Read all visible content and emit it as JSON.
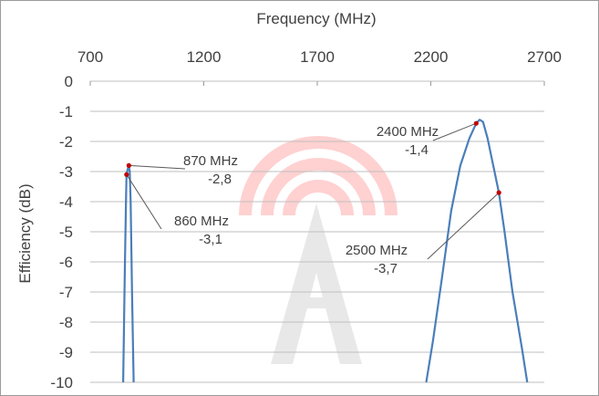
{
  "chart_data": {
    "type": "line",
    "xlabel": "Frequency (MHz)",
    "ylabel": "Efficiency (dB)",
    "xlim": [
      700,
      2700
    ],
    "ylim": [
      -10,
      0
    ],
    "x_ticks": [
      700,
      1200,
      1700,
      2200,
      2700
    ],
    "y_ticks": [
      0,
      -1,
      -2,
      -3,
      -4,
      -5,
      -6,
      -7,
      -8,
      -9,
      -10
    ],
    "y_tick_labels": [
      "0",
      "-1",
      "-2",
      "-3",
      "-4",
      "-5",
      "-6",
      "-7",
      "-8",
      "-9",
      "-10"
    ],
    "x_axis_position": "top",
    "grid": "horizontal",
    "line_color": "#4a7ebb",
    "marker_color": "#c00000",
    "series": [
      {
        "segments": [
          [
            [
              845,
              -10.0
            ],
            [
              852,
              -6.5
            ],
            [
              858,
              -3.8
            ],
            [
              860,
              -3.1
            ],
            [
              864,
              -2.95
            ],
            [
              870,
              -2.8
            ],
            [
              874,
              -3.0
            ],
            [
              878,
              -4.0
            ],
            [
              884,
              -7.0
            ],
            [
              891,
              -10.0
            ]
          ],
          [
            [
              2180,
              -10.0
            ],
            [
              2210,
              -8.6
            ],
            [
              2250,
              -6.5
            ],
            [
              2290,
              -4.3
            ],
            [
              2330,
              -2.8
            ],
            [
              2370,
              -1.9
            ],
            [
              2400,
              -1.4
            ],
            [
              2415,
              -1.28
            ],
            [
              2430,
              -1.35
            ],
            [
              2450,
              -1.9
            ],
            [
              2475,
              -2.8
            ],
            [
              2500,
              -3.7
            ],
            [
              2525,
              -5.0
            ],
            [
              2560,
              -7.0
            ],
            [
              2600,
              -8.8
            ],
            [
              2625,
              -10.0
            ]
          ]
        ]
      }
    ],
    "annotations": [
      {
        "x": 870,
        "y": -2.8,
        "label": "870 MHz",
        "value": "-2,8"
      },
      {
        "x": 860,
        "y": -3.1,
        "label": "860 MHz",
        "value": "-3,1"
      },
      {
        "x": 2400,
        "y": -1.4,
        "label": "2400 MHz",
        "value": "-1,4"
      },
      {
        "x": 2500,
        "y": -3.7,
        "label": "2500 MHz",
        "value": "-3,7"
      }
    ]
  }
}
